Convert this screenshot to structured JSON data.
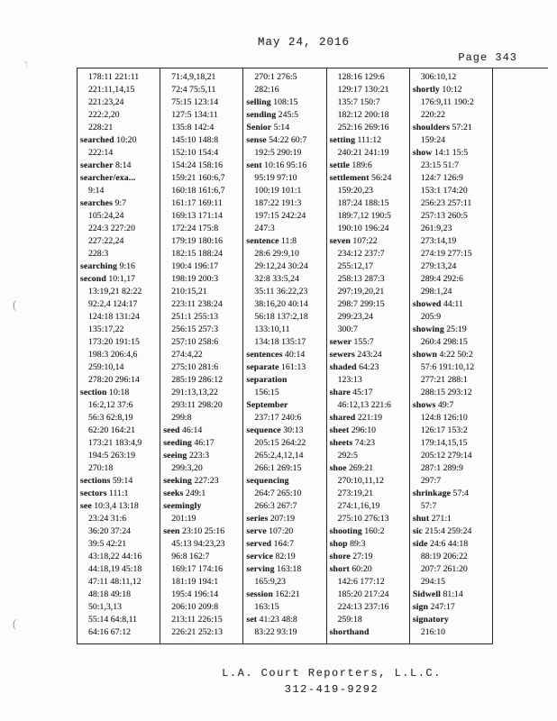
{
  "page": {
    "date_header": "May 24, 2016",
    "page_label": "Page 343",
    "footer_company": "L.A. Court Reporters, L.L.C.",
    "footer_phone": "312-419-9292"
  },
  "colors": {
    "ink": "#1c1c1c",
    "paper": "#fcfcfa"
  },
  "index": {
    "columns": [
      {
        "lines": [
          [
            "",
            "178:11 221:11"
          ],
          [
            "",
            "221:11,14,15"
          ],
          [
            "",
            "221:23,24"
          ],
          [
            "",
            "222:2,20"
          ],
          [
            "",
            "228:21"
          ],
          [
            "searched",
            "10:20"
          ],
          [
            "",
            "222:14"
          ],
          [
            "searcher",
            "8:14"
          ],
          [
            "searcher/exa...",
            ""
          ],
          [
            "",
            "9:14"
          ],
          [
            "searches",
            "9:7"
          ],
          [
            "",
            "105:24,24"
          ],
          [
            "",
            "224:3 227:20"
          ],
          [
            "",
            "227:22,24"
          ],
          [
            "",
            "228:3"
          ],
          [
            "searching",
            "9:16"
          ],
          [
            "second",
            "10:1,17"
          ],
          [
            "",
            "13:19,21 82:22"
          ],
          [
            "",
            "92:2,4 124:17"
          ],
          [
            "",
            "124:18 131:24"
          ],
          [
            "",
            "135:17,22"
          ],
          [
            "",
            "173:20 191:15"
          ],
          [
            "",
            "198:3 206:4,6"
          ],
          [
            "",
            "259:10,14"
          ],
          [
            "",
            "278:20 296:14"
          ],
          [
            "section",
            "10:18"
          ],
          [
            "",
            "16:2,12 37:6"
          ],
          [
            "",
            "56:3 62:8,19"
          ],
          [
            "",
            "62:20 164:21"
          ],
          [
            "",
            "173:21 183:4,9"
          ],
          [
            "",
            "194:5 263:19"
          ],
          [
            "",
            "270:18"
          ],
          [
            "sections",
            "59:14"
          ],
          [
            "sectors",
            "111:1"
          ],
          [
            "see",
            "10:3,4 13:18"
          ],
          [
            "",
            "23:24 31:6"
          ],
          [
            "",
            "36:20 37:24"
          ],
          [
            "",
            "39:5 42:21"
          ],
          [
            "",
            "43:18,22 44:16"
          ],
          [
            "",
            "44:18,19 45:18"
          ],
          [
            "",
            "47:11 48:11,12"
          ],
          [
            "",
            "48:18 49:18"
          ],
          [
            "",
            "50:1,3,13"
          ],
          [
            "",
            "55:14 64:8,11"
          ],
          [
            "",
            "64:16 67:12"
          ]
        ]
      },
      {
        "lines": [
          [
            "",
            "71:4,9,18,21"
          ],
          [
            "",
            "72:4 75:5,11"
          ],
          [
            "",
            "75:15 123:14"
          ],
          [
            "",
            "127:5 134:11"
          ],
          [
            "",
            "135:8 142:4"
          ],
          [
            "",
            "145:10 148:8"
          ],
          [
            "",
            "152:10 154:4"
          ],
          [
            "",
            "154:24 158:16"
          ],
          [
            "",
            "159:21 160:6,7"
          ],
          [
            "",
            "160:18 161:6,7"
          ],
          [
            "",
            "161:17 169:11"
          ],
          [
            "",
            "169:13 171:14"
          ],
          [
            "",
            "172:24 175:8"
          ],
          [
            "",
            "179:19 180:16"
          ],
          [
            "",
            "182:15 188:24"
          ],
          [
            "",
            "190:4 196:17"
          ],
          [
            "",
            "198:19 200:3"
          ],
          [
            "",
            "210:15,21"
          ],
          [
            "",
            "223:11 238:24"
          ],
          [
            "",
            "251:1 255:13"
          ],
          [
            "",
            "256:15 257:3"
          ],
          [
            "",
            "257:10 258:6"
          ],
          [
            "",
            "274:4,22"
          ],
          [
            "",
            "275:10 281:6"
          ],
          [
            "",
            "285:19 286:12"
          ],
          [
            "",
            "291:13,13,22"
          ],
          [
            "",
            "293:11 298:20"
          ],
          [
            "",
            "299:8"
          ],
          [
            "seed",
            "46:14"
          ],
          [
            "seeding",
            "46:17"
          ],
          [
            "seeing",
            "223:3"
          ],
          [
            "",
            "299:3,20"
          ],
          [
            "seeking",
            "227:23"
          ],
          [
            "seeks",
            "249:1"
          ],
          [
            "seemingly",
            ""
          ],
          [
            "",
            "201:19"
          ],
          [
            "seen",
            "23:10 25:16"
          ],
          [
            "",
            "45:13 94:23,23"
          ],
          [
            "",
            "96:8 162:7"
          ],
          [
            "",
            "169:17 174:16"
          ],
          [
            "",
            "181:19 194:1"
          ],
          [
            "",
            "195:4 196:14"
          ],
          [
            "",
            "206:10 209:8"
          ],
          [
            "",
            "213:11 226:15"
          ],
          [
            "",
            "226:21 252:13"
          ]
        ]
      },
      {
        "lines": [
          [
            "",
            "270:1 276:5"
          ],
          [
            "",
            "282:16"
          ],
          [
            "selling",
            "108:15"
          ],
          [
            "sending",
            "245:5"
          ],
          [
            "Senior",
            "5:14"
          ],
          [
            "sense",
            "54:22 60:7"
          ],
          [
            "",
            "192:5 290:19"
          ],
          [
            "sent",
            "10:16 95:16"
          ],
          [
            "",
            "95:19 97:10"
          ],
          [
            "",
            "100:19 101:1"
          ],
          [
            "",
            "187:22 191:3"
          ],
          [
            "",
            "197:15 242:24"
          ],
          [
            "",
            "247:3"
          ],
          [
            "sentence",
            "11:8"
          ],
          [
            "",
            "28:6 29:9,10"
          ],
          [
            "",
            "29:12,24 30:24"
          ],
          [
            "",
            "32:8 33:5,24"
          ],
          [
            "",
            "35:11 36:22,23"
          ],
          [
            "",
            "38:16,20 40:14"
          ],
          [
            "",
            "56:18 137:2,18"
          ],
          [
            "",
            "133:10,11"
          ],
          [
            "",
            "134:18 135:17"
          ],
          [
            "sentences",
            "40:14"
          ],
          [
            "separate",
            "161:13"
          ],
          [
            "separation",
            ""
          ],
          [
            "",
            "156:15"
          ],
          [
            "September",
            ""
          ],
          [
            "",
            "237:17 240:6"
          ],
          [
            "sequence",
            "30:13"
          ],
          [
            "",
            "205:15 264:22"
          ],
          [
            "",
            "265:2,4,12,14"
          ],
          [
            "",
            "266:1 269:15"
          ],
          [
            "sequencing",
            ""
          ],
          [
            "",
            "264:7 265:10"
          ],
          [
            "",
            "266:3 267:7"
          ],
          [
            "series",
            "207:19"
          ],
          [
            "serve",
            "107:20"
          ],
          [
            "served",
            "164:7"
          ],
          [
            "service",
            "82:19"
          ],
          [
            "serving",
            "163:18"
          ],
          [
            "",
            "165:9,23"
          ],
          [
            "session",
            "162:21"
          ],
          [
            "",
            "163:15"
          ],
          [
            "set",
            "41:23 48:8"
          ],
          [
            "",
            "83:22 93:19"
          ]
        ]
      },
      {
        "lines": [
          [
            "",
            "128:16 129:6"
          ],
          [
            "",
            "129:17 130:21"
          ],
          [
            "",
            "135:7 150:7"
          ],
          [
            "",
            "182:12 200:18"
          ],
          [
            "",
            "252:16 269:16"
          ],
          [
            "setting",
            "111:12"
          ],
          [
            "",
            "240:21 241:19"
          ],
          [
            "settle",
            "189:6"
          ],
          [
            "settlement",
            "56:24"
          ],
          [
            "",
            "159:20,23"
          ],
          [
            "",
            "187:24 188:15"
          ],
          [
            "",
            "189:7,12 190:5"
          ],
          [
            "",
            "190:10 196:24"
          ],
          [
            "seven",
            "107:22"
          ],
          [
            "",
            "234:12 237:7"
          ],
          [
            "",
            "255:12,17"
          ],
          [
            "",
            "258:13 287:3"
          ],
          [
            "",
            "297:19,20,21"
          ],
          [
            "",
            "298:7 299:15"
          ],
          [
            "",
            "299:23,24"
          ],
          [
            "",
            "300:7"
          ],
          [
            "sewer",
            "155:7"
          ],
          [
            "sewers",
            "243:24"
          ],
          [
            "shaded",
            "64:23"
          ],
          [
            "",
            "123:13"
          ],
          [
            "share",
            "45:17"
          ],
          [
            "",
            "46:12,13 221:6"
          ],
          [
            "shared",
            "221:19"
          ],
          [
            "sheet",
            "296:10"
          ],
          [
            "sheets",
            "74:23"
          ],
          [
            "",
            "292:5"
          ],
          [
            "shoe",
            "269:21"
          ],
          [
            "",
            "270:10,11,12"
          ],
          [
            "",
            "273:19,21"
          ],
          [
            "",
            "274:1,16,19"
          ],
          [
            "",
            "275:10 276:13"
          ],
          [
            "shooting",
            "160:2"
          ],
          [
            "shop",
            "89:3"
          ],
          [
            "shore",
            "27:19"
          ],
          [
            "short",
            "60:20"
          ],
          [
            "",
            "142:6 177:12"
          ],
          [
            "",
            "185:20 217:24"
          ],
          [
            "",
            "224:13 237:16"
          ],
          [
            "",
            "259:18"
          ],
          [
            "shorthand",
            ""
          ]
        ]
      },
      {
        "lines": [
          [
            "",
            "306:10,12"
          ],
          [
            "shortly",
            "10:12"
          ],
          [
            "",
            "176:9,11 190:2"
          ],
          [
            "",
            "220:22"
          ],
          [
            "shoulders",
            "57:21"
          ],
          [
            "",
            "159:24"
          ],
          [
            "show",
            "14:1 15:5"
          ],
          [
            "",
            "23:15 51:7"
          ],
          [
            "",
            "124:7 126:9"
          ],
          [
            "",
            "153:1 174:20"
          ],
          [
            "",
            "256:23 257:11"
          ],
          [
            "",
            "257:13 260:5"
          ],
          [
            "",
            "261:9,23"
          ],
          [
            "",
            "273:14,19"
          ],
          [
            "",
            "274:19 277:15"
          ],
          [
            "",
            "279:13,24"
          ],
          [
            "",
            "289:4 292:6"
          ],
          [
            "",
            "298:1,24"
          ],
          [
            "showed",
            "44:11"
          ],
          [
            "",
            "205:9"
          ],
          [
            "showing",
            "25:19"
          ],
          [
            "",
            "260:4 298:15"
          ],
          [
            "shown",
            "4:22 50:2"
          ],
          [
            "",
            "57:6 191:10,12"
          ],
          [
            "",
            "277:21 288:1"
          ],
          [
            "",
            "288:15 293:12"
          ],
          [
            "shows",
            "49:7"
          ],
          [
            "",
            "124:8 126:10"
          ],
          [
            "",
            "126:17 153:2"
          ],
          [
            "",
            "179:14,15,15"
          ],
          [
            "",
            "205:12 279:14"
          ],
          [
            "",
            "287:1 289:9"
          ],
          [
            "",
            "297:7"
          ],
          [
            "shrinkage",
            "57:4"
          ],
          [
            "",
            "57:7"
          ],
          [
            "shut",
            "271:1"
          ],
          [
            "sic",
            "215:4 259:24"
          ],
          [
            "side",
            "24:6 44:18"
          ],
          [
            "",
            "88:19 206:22"
          ],
          [
            "",
            "207:7 261:20"
          ],
          [
            "",
            "294:15"
          ],
          [
            "Sidwell",
            "81:14"
          ],
          [
            "sign",
            "247:17"
          ],
          [
            "signatory",
            ""
          ],
          [
            "",
            "216:10"
          ]
        ]
      }
    ]
  }
}
